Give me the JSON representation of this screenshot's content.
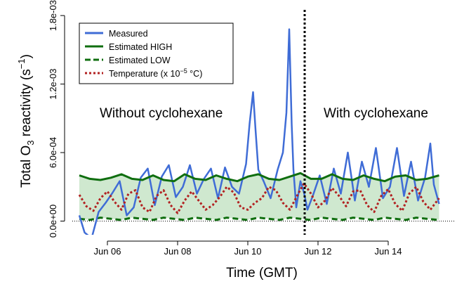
{
  "chart_data": {
    "type": "line",
    "xlabel": "Time (GMT)",
    "ylabel": {
      "prefix": "Total O",
      "sub": "3",
      "middle": " reactivity (s",
      "sup": "−1",
      "suffix": ")"
    },
    "x_axis": {
      "unit": "day of June (GMT)",
      "range": [
        5.0,
        15.9
      ],
      "tick_values": [
        6,
        8,
        10,
        12,
        14
      ],
      "tick_labels": [
        "Jun 06",
        "Jun 08",
        "Jun 10",
        "Jun 12",
        "Jun 14"
      ]
    },
    "y_axis": {
      "range": [
        -0.00012,
        0.00185
      ],
      "tick_values": [
        0,
        0.0006,
        0.0012,
        0.0018
      ],
      "tick_labels": [
        "0.0e+00",
        "6.0e-04",
        "1.2e-03",
        "1.8e-03"
      ]
    },
    "reference_lines": {
      "divider_x": 11.62,
      "zero_y": 0
    },
    "annotations": {
      "left": "Without cyclohexane",
      "right": "With cyclohexane"
    },
    "legend": {
      "position": "top-left",
      "items": [
        {
          "label": "Measured",
          "color": "#3f6cd6",
          "style": "solid"
        },
        {
          "label": "Estimated HIGH",
          "color": "#0f6e0f",
          "style": "solid"
        },
        {
          "label": "Estimated LOW",
          "color": "#0f6e0f",
          "style": "dashed"
        },
        {
          "label_parts": {
            "prefix": "Temperature (x 10",
            "sup": "−5",
            "suffix": " °C)"
          },
          "color": "#b22222",
          "style": "dotted"
        }
      ]
    },
    "colors": {
      "measured": "#3f6cd6",
      "estimated": "#0f6e0f",
      "temperature": "#b22222",
      "band_fill": "#cfe8cf",
      "divider": "#000000"
    },
    "series": [
      {
        "name": "Measured",
        "x": [
          5.2,
          5.35,
          5.55,
          5.75,
          5.95,
          6.15,
          6.35,
          6.55,
          6.75,
          6.95,
          7.15,
          7.35,
          7.55,
          7.75,
          7.95,
          8.15,
          8.35,
          8.55,
          8.75,
          8.95,
          9.15,
          9.35,
          9.55,
          9.75,
          9.95,
          10.05,
          10.15,
          10.22,
          10.3,
          10.45,
          10.65,
          10.85,
          11.0,
          11.1,
          11.18,
          11.25,
          11.3,
          11.38,
          11.5,
          11.6,
          11.7,
          11.85,
          12.05,
          12.25,
          12.45,
          12.65,
          12.85,
          13.05,
          13.25,
          13.45,
          13.65,
          13.85,
          14.05,
          14.25,
          14.45,
          14.65,
          14.85,
          15.05,
          15.2,
          15.3,
          15.45
        ],
        "y": [
          5e-05,
          -0.0001,
          -0.00015,
          8e-05,
          0.00016,
          0.00025,
          0.00035,
          5e-05,
          0.00012,
          0.00038,
          0.00046,
          0.00014,
          0.00039,
          0.00049,
          0.00021,
          0.0003,
          0.00049,
          0.00024,
          0.00037,
          0.00046,
          0.0002,
          0.00047,
          0.0003,
          0.00024,
          0.0005,
          0.00085,
          0.00113,
          0.0008,
          0.00045,
          0.00035,
          0.0002,
          0.00045,
          0.0006,
          0.00095,
          0.00168,
          0.00085,
          0.00045,
          0.00012,
          0.00035,
          0.00025,
          0.0001,
          0.00022,
          0.0004,
          0.00015,
          0.00046,
          0.00024,
          0.0006,
          0.00018,
          0.00052,
          0.0003,
          0.00064,
          0.0002,
          0.0003,
          0.00064,
          0.00022,
          0.00052,
          0.00018,
          0.00038,
          0.00068,
          0.00032,
          0.00015
        ]
      },
      {
        "name": "Estimated HIGH",
        "x": [
          5.2,
          5.5,
          5.8,
          6.1,
          6.4,
          6.7,
          7.0,
          7.3,
          7.6,
          7.9,
          8.2,
          8.5,
          8.8,
          9.1,
          9.4,
          9.7,
          10.0,
          10.3,
          10.6,
          10.9,
          11.2,
          11.5,
          11.8,
          12.1,
          12.4,
          12.7,
          13.0,
          13.3,
          13.6,
          13.9,
          14.2,
          14.5,
          14.8,
          15.1,
          15.45
        ],
        "y": [
          0.0004,
          0.00037,
          0.00036,
          0.00038,
          0.00041,
          0.00037,
          0.00036,
          0.0004,
          0.00036,
          0.00035,
          0.00041,
          0.00037,
          0.00036,
          0.0004,
          0.00037,
          0.00035,
          0.00039,
          0.00041,
          0.00037,
          0.00036,
          0.00039,
          0.00042,
          0.00037,
          0.00037,
          0.00041,
          0.00037,
          0.00036,
          0.0004,
          0.00037,
          0.00035,
          0.00039,
          0.0004,
          0.00036,
          0.00037,
          0.0004
        ]
      },
      {
        "name": "Estimated LOW",
        "x": [
          5.2,
          5.5,
          5.8,
          6.1,
          6.4,
          6.7,
          7.0,
          7.3,
          7.6,
          7.9,
          8.2,
          8.5,
          8.8,
          9.1,
          9.4,
          9.7,
          10.0,
          10.3,
          10.6,
          10.9,
          11.2,
          11.5,
          11.8,
          12.1,
          12.4,
          12.7,
          13.0,
          13.3,
          13.6,
          13.9,
          14.2,
          14.5,
          14.8,
          15.1,
          15.45
        ],
        "y": [
          2e-05,
          1e-05,
          3e-05,
          2e-05,
          1e-05,
          3e-05,
          2e-05,
          1e-05,
          3e-05,
          2e-05,
          1e-05,
          3e-05,
          2e-05,
          1e-05,
          3e-05,
          2e-05,
          1e-05,
          3e-05,
          2e-05,
          1e-05,
          3e-05,
          2e-05,
          1e-05,
          3e-05,
          2e-05,
          1e-05,
          3e-05,
          2e-05,
          1e-05,
          3e-05,
          2e-05,
          1e-05,
          3e-05,
          2e-05,
          1e-05
        ]
      },
      {
        "name": "Temperature",
        "x": [
          5.2,
          5.4,
          5.6,
          5.8,
          6.0,
          6.2,
          6.4,
          6.6,
          6.8,
          7.0,
          7.2,
          7.4,
          7.6,
          7.8,
          8.0,
          8.2,
          8.4,
          8.6,
          8.8,
          9.0,
          9.2,
          9.4,
          9.6,
          9.8,
          10.0,
          10.2,
          10.4,
          10.6,
          10.8,
          11.0,
          11.2,
          11.4,
          11.6,
          11.8,
          12.0,
          12.2,
          12.4,
          12.6,
          12.8,
          13.0,
          13.2,
          13.4,
          13.6,
          13.8,
          14.0,
          14.2,
          14.4,
          14.6,
          14.8,
          15.0,
          15.2,
          15.45
        ],
        "y": [
          0.00023,
          0.00013,
          9e-05,
          0.0002,
          0.00026,
          0.00017,
          0.0001,
          0.00024,
          0.00027,
          0.00012,
          8e-05,
          0.00022,
          0.00027,
          0.00014,
          7e-05,
          0.00018,
          0.00026,
          0.00018,
          0.0001,
          0.00014,
          0.00021,
          0.0003,
          0.00025,
          0.00012,
          0.0001,
          0.00016,
          0.0002,
          0.0003,
          0.00027,
          0.00016,
          0.0001,
          0.00022,
          0.00033,
          0.00024,
          0.00012,
          0.00018,
          0.00029,
          0.00022,
          0.00013,
          0.00026,
          0.00027,
          0.00014,
          8e-05,
          0.00022,
          0.00028,
          0.00015,
          9e-05,
          0.00024,
          0.0003,
          0.00017,
          0.0001,
          0.0002
        ]
      }
    ]
  }
}
